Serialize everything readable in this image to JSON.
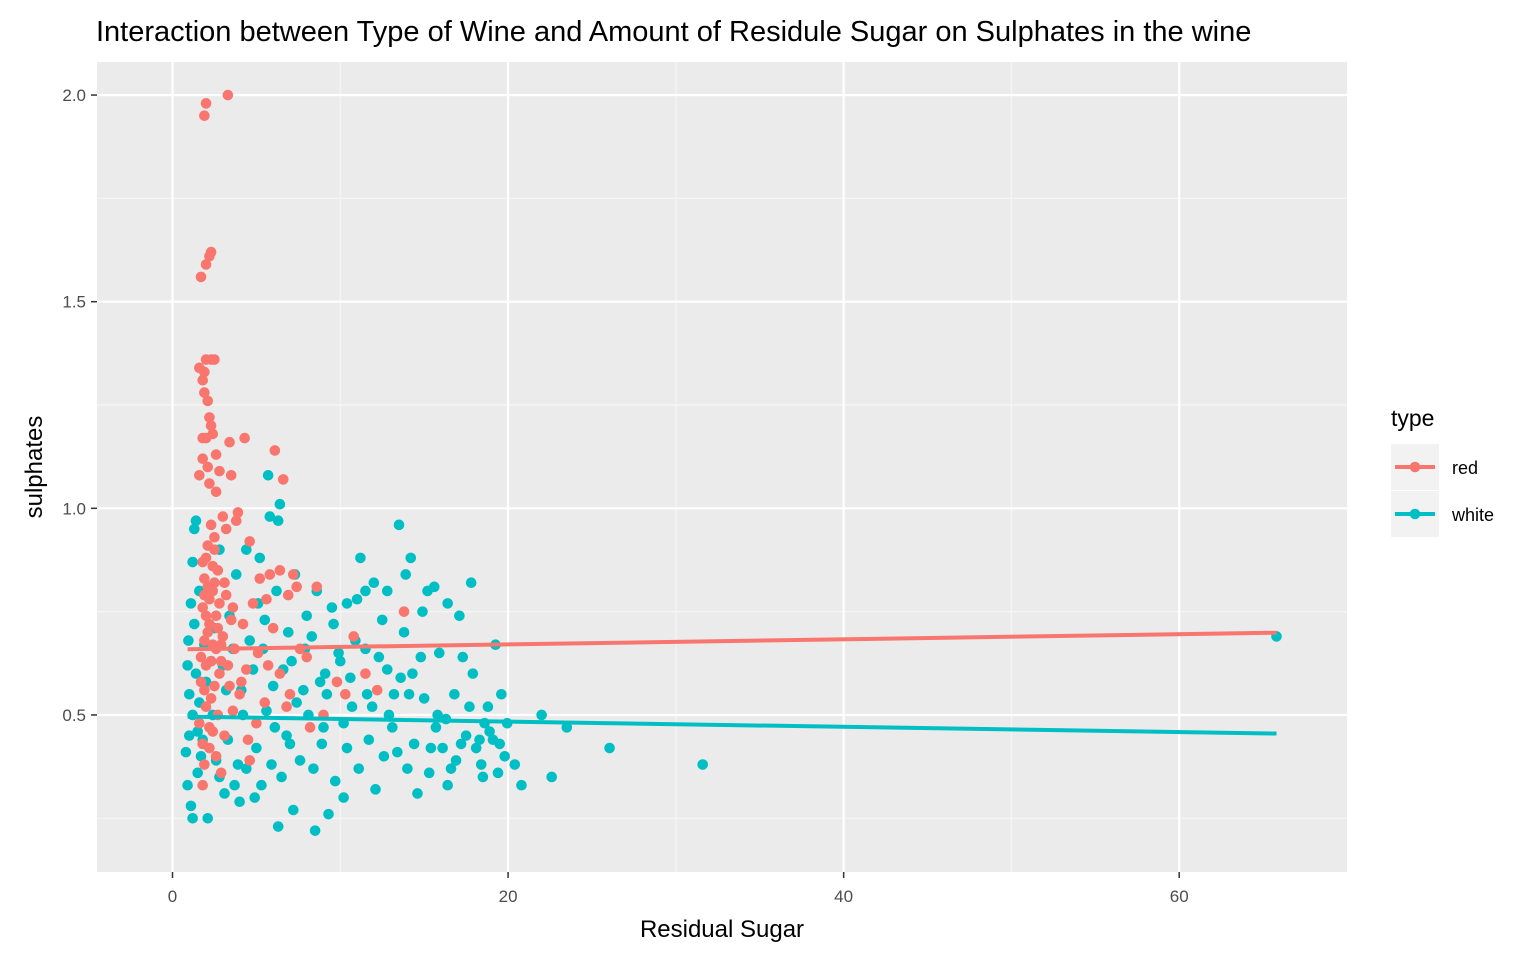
{
  "chart_data": {
    "type": "scatter",
    "title": "Interaction between Type of Wine and Amount of Residule Sugar on Sulphates in the wine",
    "xlabel": "Residual Sugar",
    "ylabel": "sulphates",
    "xlim": [
      -4.5,
      70
    ],
    "ylim": [
      0.12,
      2.08
    ],
    "x_ticks": [
      0,
      20,
      40,
      60
    ],
    "y_ticks": [
      0.5,
      1.0,
      1.5,
      2.0
    ],
    "x_tick_labels": [
      "0",
      "20",
      "40",
      "60"
    ],
    "y_tick_labels": [
      "0.5",
      "1.0",
      "1.5",
      "2.0"
    ],
    "grid": true,
    "legend": {
      "title": "type",
      "position": "right"
    },
    "series": [
      {
        "name": "red",
        "color": "#F8766D",
        "points": [
          [
            3.3,
            2.0
          ],
          [
            2.0,
            1.98
          ],
          [
            1.9,
            1.95
          ],
          [
            2.3,
            1.62
          ],
          [
            2.2,
            1.61
          ],
          [
            2.0,
            1.59
          ],
          [
            1.7,
            1.56
          ],
          [
            2.0,
            1.36
          ],
          [
            2.3,
            1.36
          ],
          [
            2.5,
            1.36
          ],
          [
            1.6,
            1.34
          ],
          [
            1.9,
            1.33
          ],
          [
            1.8,
            1.31
          ],
          [
            1.9,
            1.28
          ],
          [
            2.1,
            1.26
          ],
          [
            2.2,
            1.22
          ],
          [
            2.3,
            1.2
          ],
          [
            2.4,
            1.18
          ],
          [
            2.0,
            1.17
          ],
          [
            1.8,
            1.17
          ],
          [
            4.3,
            1.17
          ],
          [
            3.4,
            1.16
          ],
          [
            6.1,
            1.14
          ],
          [
            2.6,
            1.13
          ],
          [
            1.8,
            1.12
          ],
          [
            2.1,
            1.1
          ],
          [
            2.8,
            1.09
          ],
          [
            1.6,
            1.08
          ],
          [
            3.5,
            1.08
          ],
          [
            6.6,
            1.07
          ],
          [
            2.2,
            1.06
          ],
          [
            2.6,
            1.04
          ],
          [
            3.9,
            0.99
          ],
          [
            3.0,
            0.98
          ],
          [
            3.8,
            0.97
          ],
          [
            2.3,
            0.96
          ],
          [
            4.6,
            0.92
          ],
          [
            3.2,
            0.95
          ],
          [
            2.5,
            0.9
          ],
          [
            2.0,
            0.88
          ],
          [
            2.7,
            0.85
          ],
          [
            1.9,
            0.83
          ],
          [
            3.1,
            0.82
          ],
          [
            5.8,
            0.84
          ],
          [
            6.4,
            0.85
          ],
          [
            7.2,
            0.84
          ],
          [
            5.2,
            0.83
          ],
          [
            7.4,
            0.81
          ],
          [
            2.4,
            0.8
          ],
          [
            2.2,
            0.78
          ],
          [
            4.8,
            0.77
          ],
          [
            5.6,
            0.78
          ],
          [
            6.9,
            0.79
          ],
          [
            1.8,
            0.76
          ],
          [
            2.6,
            0.74
          ],
          [
            3.5,
            0.73
          ],
          [
            4.2,
            0.72
          ],
          [
            13.8,
            0.75
          ],
          [
            10.8,
            0.69
          ],
          [
            2.1,
            0.7
          ],
          [
            1.9,
            0.68
          ],
          [
            2.9,
            0.67
          ],
          [
            3.7,
            0.66
          ],
          [
            5.1,
            0.65
          ],
          [
            2.3,
            0.63
          ],
          [
            2.8,
            0.6
          ],
          [
            3.3,
            0.62
          ],
          [
            8.0,
            0.64
          ],
          [
            1.7,
            0.58
          ],
          [
            2.5,
            0.57
          ],
          [
            4.0,
            0.55
          ],
          [
            12.2,
            0.56
          ],
          [
            2.0,
            0.52
          ],
          [
            2.7,
            0.5
          ],
          [
            3.6,
            0.51
          ],
          [
            5.5,
            0.53
          ],
          [
            1.6,
            0.48
          ],
          [
            2.4,
            0.46
          ],
          [
            3.1,
            0.45
          ],
          [
            9.0,
            0.5
          ],
          [
            1.8,
            0.43
          ],
          [
            2.2,
            0.42
          ],
          [
            4.5,
            0.44
          ],
          [
            2.6,
            0.4
          ],
          [
            1.9,
            0.38
          ],
          [
            4.6,
            0.39
          ],
          [
            2.9,
            0.36
          ],
          [
            1.8,
            0.33
          ],
          [
            2.0,
            0.62
          ],
          [
            2.2,
            0.72
          ],
          [
            1.9,
            0.79
          ],
          [
            2.4,
            0.86
          ],
          [
            2.1,
            0.91
          ],
          [
            2.8,
            0.77
          ],
          [
            3.0,
            0.69
          ],
          [
            6.0,
            0.71
          ],
          [
            7.6,
            0.66
          ],
          [
            8.6,
            0.81
          ],
          [
            6.4,
            0.6
          ],
          [
            9.8,
            0.58
          ],
          [
            7.0,
            0.55
          ],
          [
            11.5,
            0.6
          ],
          [
            3.4,
            0.57
          ],
          [
            2.3,
            0.54
          ],
          [
            1.7,
            0.64
          ],
          [
            2.6,
            0.66
          ],
          [
            2.0,
            0.74
          ],
          [
            3.2,
            0.79
          ],
          [
            2.5,
            0.82
          ],
          [
            4.4,
            0.61
          ],
          [
            5.0,
            0.48
          ],
          [
            6.8,
            0.52
          ],
          [
            8.2,
            0.47
          ],
          [
            10.3,
            0.55
          ],
          [
            2.2,
            0.47
          ],
          [
            1.9,
            0.56
          ],
          [
            2.4,
            0.67
          ],
          [
            2.7,
            0.71
          ],
          [
            3.6,
            0.76
          ],
          [
            2.1,
            0.81
          ],
          [
            1.8,
            0.87
          ],
          [
            2.5,
            0.93
          ],
          [
            2.9,
            0.63
          ],
          [
            4.1,
            0.58
          ],
          [
            5.7,
            0.62
          ]
        ]
      },
      {
        "name": "white",
        "color": "#00BFC4",
        "points": [
          [
            65.8,
            0.69
          ],
          [
            31.6,
            0.38
          ],
          [
            26.05,
            0.42
          ],
          [
            23.5,
            0.47
          ],
          [
            22.6,
            0.35
          ],
          [
            22.0,
            0.5
          ],
          [
            20.8,
            0.33
          ],
          [
            20.4,
            0.38
          ],
          [
            19.95,
            0.48
          ],
          [
            19.8,
            0.4
          ],
          [
            19.5,
            0.43
          ],
          [
            19.4,
            0.36
          ],
          [
            19.25,
            0.67
          ],
          [
            18.9,
            0.46
          ],
          [
            18.5,
            0.35
          ],
          [
            18.1,
            0.42
          ],
          [
            17.8,
            0.82
          ],
          [
            17.1,
            0.74
          ],
          [
            16.4,
            0.77
          ],
          [
            15.6,
            0.81
          ],
          [
            15.2,
            0.8
          ],
          [
            14.9,
            0.75
          ],
          [
            14.2,
            0.88
          ],
          [
            13.9,
            0.84
          ],
          [
            13.5,
            0.96
          ],
          [
            12.8,
            0.8
          ],
          [
            12.0,
            0.82
          ],
          [
            11.2,
            0.88
          ],
          [
            11.5,
            0.8
          ],
          [
            10.4,
            0.77
          ],
          [
            9.5,
            0.76
          ],
          [
            8.6,
            0.8
          ],
          [
            7.3,
            0.84
          ],
          [
            6.4,
            1.01
          ],
          [
            5.7,
            1.08
          ],
          [
            5.8,
            0.98
          ],
          [
            6.3,
            0.97
          ],
          [
            4.4,
            0.9
          ],
          [
            5.2,
            0.88
          ],
          [
            1.4,
            0.97
          ],
          [
            1.3,
            0.95
          ],
          [
            1.2,
            0.87
          ],
          [
            1.1,
            0.77
          ],
          [
            0.9,
            0.62
          ],
          [
            1.0,
            0.55
          ],
          [
            0.8,
            0.41
          ],
          [
            0.9,
            0.33
          ],
          [
            1.1,
            0.28
          ],
          [
            1.2,
            0.25
          ],
          [
            2.1,
            0.25
          ],
          [
            6.3,
            0.23
          ],
          [
            8.5,
            0.22
          ],
          [
            9.3,
            0.26
          ],
          [
            7.2,
            0.27
          ],
          [
            4.0,
            0.29
          ],
          [
            3.1,
            0.31
          ],
          [
            10.2,
            0.3
          ],
          [
            12.1,
            0.32
          ],
          [
            14.6,
            0.31
          ],
          [
            16.4,
            0.33
          ],
          [
            18.4,
            0.38
          ],
          [
            17.2,
            0.43
          ],
          [
            15.8,
            0.5
          ],
          [
            14.1,
            0.55
          ],
          [
            12.8,
            0.61
          ],
          [
            11.5,
            0.66
          ],
          [
            10.0,
            0.63
          ],
          [
            8.8,
            0.58
          ],
          [
            7.4,
            0.53
          ],
          [
            6.1,
            0.47
          ],
          [
            5.0,
            0.42
          ],
          [
            3.9,
            0.38
          ],
          [
            2.8,
            0.35
          ],
          [
            1.7,
            0.4
          ],
          [
            1.5,
            0.46
          ],
          [
            1.6,
            0.53
          ],
          [
            1.4,
            0.6
          ],
          [
            1.9,
            0.67
          ],
          [
            2.5,
            0.71
          ],
          [
            3.6,
            0.66
          ],
          [
            4.8,
            0.61
          ],
          [
            6.0,
            0.57
          ],
          [
            7.1,
            0.63
          ],
          [
            8.3,
            0.69
          ],
          [
            9.6,
            0.72
          ],
          [
            10.9,
            0.68
          ],
          [
            12.3,
            0.64
          ],
          [
            13.6,
            0.59
          ],
          [
            15.0,
            0.54
          ],
          [
            16.3,
            0.49
          ],
          [
            17.5,
            0.45
          ],
          [
            16.9,
            0.39
          ],
          [
            15.3,
            0.36
          ],
          [
            13.4,
            0.41
          ],
          [
            11.7,
            0.44
          ],
          [
            10.2,
            0.48
          ],
          [
            8.9,
            0.43
          ],
          [
            7.6,
            0.39
          ],
          [
            6.5,
            0.35
          ],
          [
            5.3,
            0.33
          ],
          [
            4.4,
            0.37
          ],
          [
            3.3,
            0.44
          ],
          [
            2.4,
            0.5
          ],
          [
            2.0,
            0.58
          ],
          [
            3.0,
            0.62
          ],
          [
            4.1,
            0.56
          ],
          [
            5.6,
            0.51
          ],
          [
            6.8,
            0.45
          ],
          [
            8.1,
            0.5
          ],
          [
            9.2,
            0.55
          ],
          [
            10.6,
            0.59
          ],
          [
            11.9,
            0.52
          ],
          [
            13.1,
            0.47
          ],
          [
            14.4,
            0.43
          ],
          [
            15.7,
            0.47
          ],
          [
            16.8,
            0.55
          ],
          [
            17.9,
            0.6
          ],
          [
            18.8,
            0.52
          ],
          [
            19.6,
            0.55
          ],
          [
            18.3,
            0.44
          ],
          [
            13.8,
            0.7
          ],
          [
            12.5,
            0.73
          ],
          [
            11.0,
            0.78
          ],
          [
            9.9,
            0.65
          ],
          [
            8.0,
            0.74
          ],
          [
            6.9,
            0.7
          ],
          [
            5.5,
            0.73
          ],
          [
            4.6,
            0.68
          ],
          [
            3.4,
            0.74
          ],
          [
            2.2,
            0.81
          ],
          [
            1.3,
            0.72
          ],
          [
            1.8,
            0.44
          ],
          [
            2.6,
            0.39
          ],
          [
            3.7,
            0.33
          ],
          [
            4.9,
            0.3
          ],
          [
            5.9,
            0.38
          ],
          [
            7.0,
            0.43
          ],
          [
            8.4,
            0.37
          ],
          [
            9.7,
            0.34
          ],
          [
            11.1,
            0.37
          ],
          [
            12.6,
            0.4
          ],
          [
            14.0,
            0.37
          ],
          [
            15.4,
            0.42
          ],
          [
            16.6,
            0.37
          ],
          [
            17.7,
            0.52
          ],
          [
            14.8,
            0.64
          ],
          [
            13.2,
            0.55
          ],
          [
            10.7,
            0.52
          ],
          [
            9.0,
            0.47
          ],
          [
            7.8,
            0.56
          ],
          [
            6.6,
            0.61
          ],
          [
            5.4,
            0.66
          ],
          [
            4.2,
            0.5
          ],
          [
            3.2,
            0.56
          ],
          [
            2.3,
            0.63
          ],
          [
            1.5,
            0.36
          ],
          [
            1.0,
            0.45
          ],
          [
            1.2,
            0.5
          ],
          [
            0.95,
            0.68
          ],
          [
            1.6,
            0.8
          ],
          [
            2.8,
            0.9
          ],
          [
            3.8,
            0.84
          ],
          [
            5.1,
            0.77
          ],
          [
            6.2,
            0.8
          ],
          [
            7.9,
            0.66
          ],
          [
            9.1,
            0.6
          ],
          [
            10.4,
            0.42
          ],
          [
            11.6,
            0.55
          ],
          [
            12.9,
            0.5
          ],
          [
            14.3,
            0.6
          ],
          [
            15.9,
            0.65
          ],
          [
            16.1,
            0.42
          ],
          [
            17.3,
            0.64
          ],
          [
            18.6,
            0.48
          ],
          [
            19.1,
            0.44
          ]
        ]
      }
    ],
    "fit_lines": [
      {
        "name": "red",
        "color": "#F8766D",
        "x": [
          0.9,
          65.8
        ],
        "y": [
          0.659,
          0.699
        ]
      },
      {
        "name": "white",
        "color": "#00BFC4",
        "x": [
          0.9,
          65.8
        ],
        "y": [
          0.496,
          0.455
        ]
      }
    ]
  }
}
